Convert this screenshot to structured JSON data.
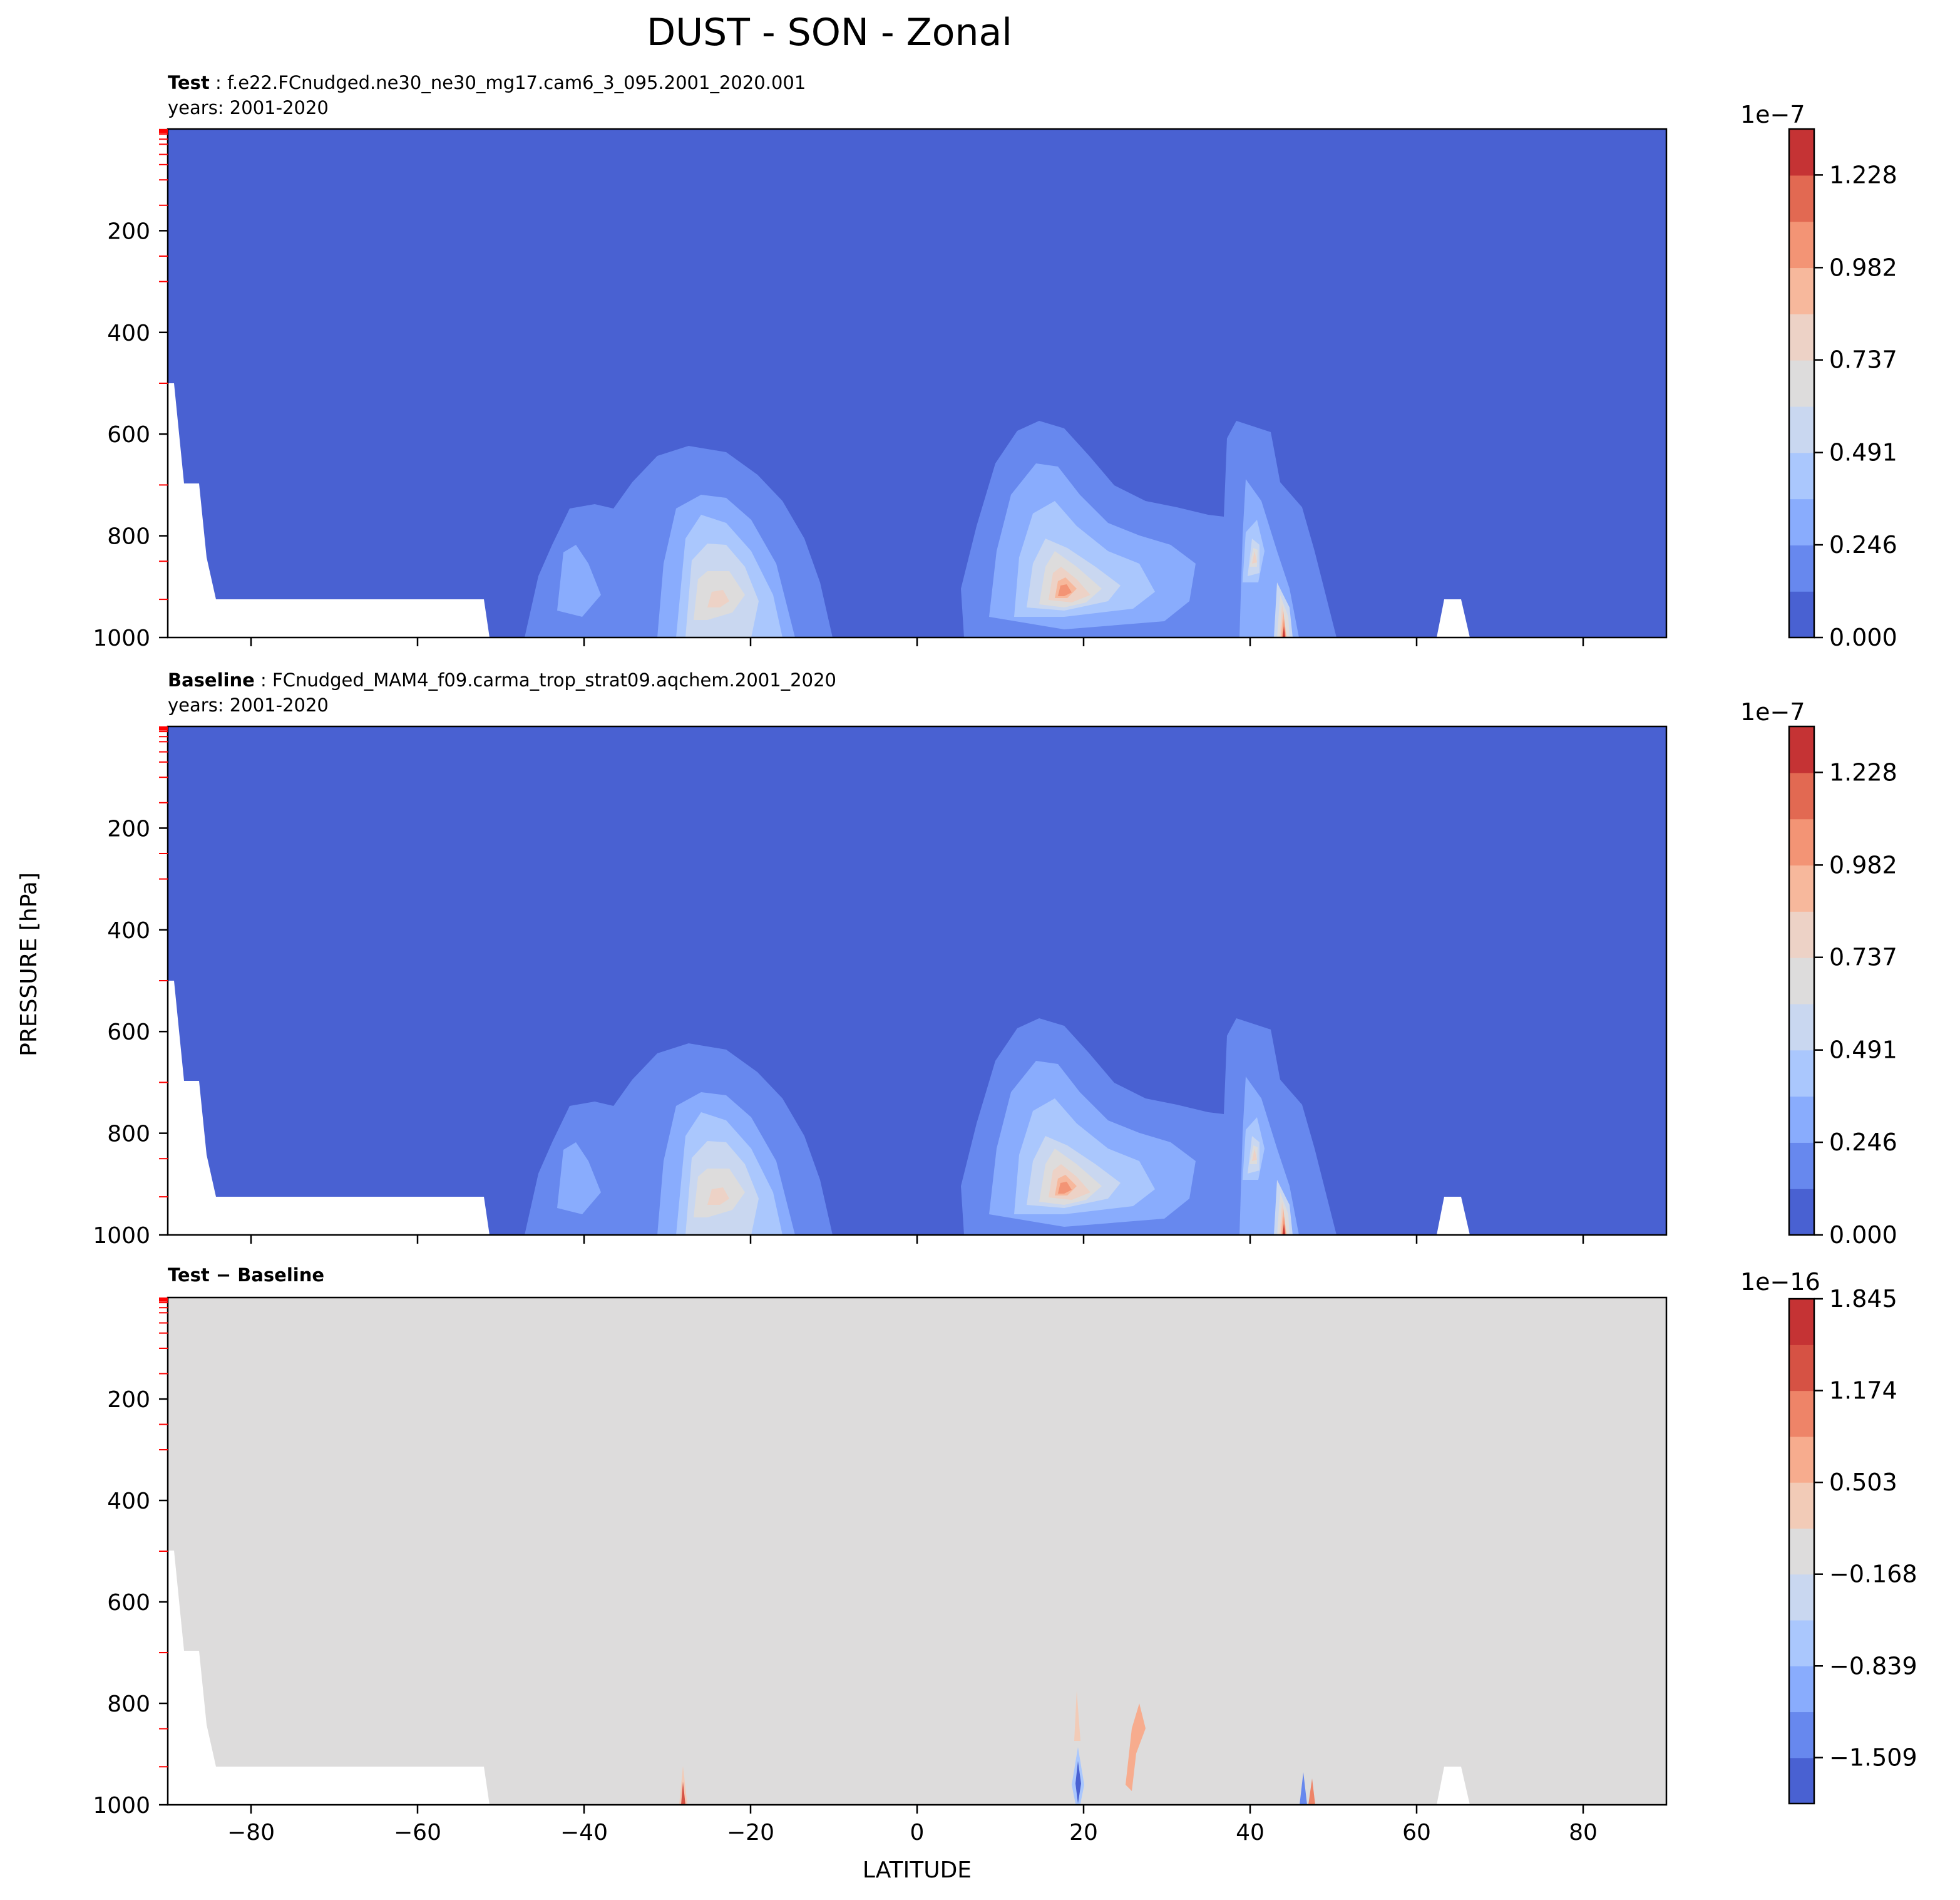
{
  "figure": {
    "title": "DUST - SON - Zonal",
    "ylabel": "PRESSURE [hPa]",
    "xlabel": "LATITUDE"
  },
  "panels": [
    {
      "label_bold": "Test",
      "label_rest": " : f.e22.FCnudged.ne30_ne30_mg17.cam6_3_095.2001_2020.001",
      "years": "years: 2001-2020",
      "cbar_exponent": "1e−7",
      "cbar_ticks": [
        "0.000",
        "0.246",
        "0.491",
        "0.737",
        "0.982",
        "1.228"
      ]
    },
    {
      "label_bold": "Baseline",
      "label_rest": " : FCnudged_MAM4_f09.carma_trop_strat09.aqchem.2001_2020",
      "years": "years: 2001-2020",
      "cbar_exponent": "1e−7",
      "cbar_ticks": [
        "0.000",
        "0.246",
        "0.491",
        "0.737",
        "0.982",
        "1.228"
      ]
    },
    {
      "label_bold": "Test − Baseline",
      "label_rest": "",
      "years": "",
      "cbar_exponent": "1e−16",
      "cbar_ticks": [
        "−1.509",
        "−0.839",
        "−0.168",
        "0.503",
        "1.174",
        "1.845"
      ]
    }
  ],
  "colors": {
    "seq": [
      "#4961d2",
      "#6788ee",
      "#89acfd",
      "#aac7fd",
      "#c9d7f0",
      "#dddcdc",
      "#edd2c6",
      "#f7b89c",
      "#f39475",
      "#e26952",
      "#c53334"
    ],
    "diff": [
      "#4961d2",
      "#6788ee",
      "#89acfd",
      "#aac7fd",
      "#c9d7f0",
      "#dddcdc",
      "#f2cbb7",
      "#f7ac8e",
      "#ee8468",
      "#d65244",
      "#c53334"
    ],
    "tick_red": "#ff0000"
  },
  "chart_data": [
    {
      "type": "contour",
      "title": "Test : f.e22.FCnudged.ne30_ne30_mg17.cam6_3_095.2001_2020.001",
      "xlabel": "LATITUDE",
      "ylabel": "PRESSURE [hPa]",
      "xlim": [
        -90,
        90
      ],
      "ylim": [
        1000,
        0
      ],
      "x_ticks": [
        "−80",
        "−60",
        "−40",
        "−20",
        "0",
        "20",
        "40",
        "60",
        "80"
      ],
      "y_ticks": [
        "200",
        "400",
        "600",
        "800",
        "1000"
      ],
      "levels": [
        0,
        0.1228,
        0.246,
        0.368,
        0.491,
        0.614,
        0.737,
        0.859,
        0.982,
        1.105,
        1.228,
        1.35
      ],
      "level_scale": "1e-7",
      "maxima": [
        {
          "lat": -27,
          "pressure": 920,
          "value": 0.85
        },
        {
          "lat": 17,
          "pressure": 910,
          "value": 0.95
        },
        {
          "lat": 40.5,
          "pressure": 840,
          "value": 0.8
        },
        {
          "lat": 45,
          "pressure": 985,
          "value": 1.35
        }
      ]
    },
    {
      "type": "contour",
      "title": "Baseline : FCnudged_MAM4_f09.carma_trop_strat09.aqchem.2001_2020",
      "xlabel": "LATITUDE",
      "ylabel": "PRESSURE [hPa]",
      "xlim": [
        -90,
        90
      ],
      "ylim": [
        1000,
        0
      ],
      "x_ticks": [
        "−80",
        "−60",
        "−40",
        "−20",
        "0",
        "20",
        "40",
        "60",
        "80"
      ],
      "y_ticks": [
        "200",
        "400",
        "600",
        "800",
        "1000"
      ],
      "levels": [
        0,
        0.1228,
        0.246,
        0.368,
        0.491,
        0.614,
        0.737,
        0.859,
        0.982,
        1.105,
        1.228,
        1.35
      ],
      "level_scale": "1e-7",
      "maxima": [
        {
          "lat": -27,
          "pressure": 920,
          "value": 0.85
        },
        {
          "lat": 17,
          "pressure": 910,
          "value": 0.95
        },
        {
          "lat": 40.5,
          "pressure": 840,
          "value": 0.8
        },
        {
          "lat": 45,
          "pressure": 985,
          "value": 1.35
        }
      ]
    },
    {
      "type": "contour",
      "title": "Test − Baseline",
      "xlabel": "LATITUDE",
      "ylabel": "PRESSURE [hPa]",
      "xlim": [
        -90,
        90
      ],
      "ylim": [
        1000,
        0
      ],
      "x_ticks": [
        "−80",
        "−60",
        "−40",
        "−20",
        "0",
        "20",
        "40",
        "60",
        "80"
      ],
      "y_ticks": [
        "200",
        "400",
        "600",
        "800",
        "1000"
      ],
      "levels": [
        -1.845,
        -1.509,
        -1.174,
        -0.839,
        -0.503,
        -0.168,
        0.168,
        0.503,
        0.839,
        1.174,
        1.509,
        1.845
      ],
      "level_scale": "1e-16",
      "features": [
        {
          "lat": -28,
          "pressure": 985,
          "sign": "positive"
        },
        {
          "lat": 19,
          "pressure": 930,
          "sign": "negative"
        },
        {
          "lat": 18.5,
          "pressure": 810,
          "sign": "positive"
        },
        {
          "lat": 26,
          "pressure": 880,
          "sign": "positive"
        },
        {
          "lat": 46.5,
          "pressure": 985,
          "sign": "negative"
        },
        {
          "lat": 48,
          "pressure": 985,
          "sign": "positive"
        }
      ]
    }
  ]
}
